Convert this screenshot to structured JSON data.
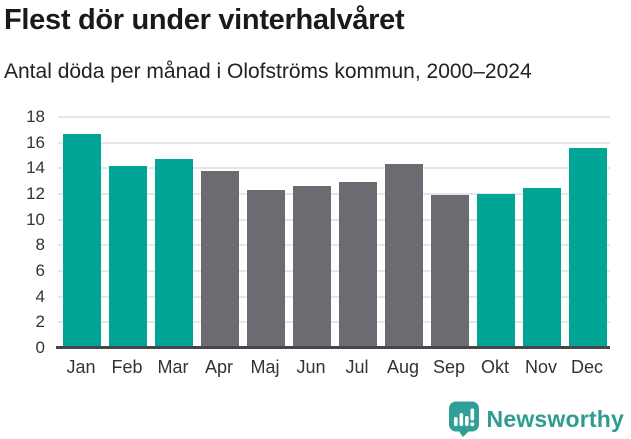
{
  "header": {
    "title": "Flest dör under vinterhalvåret",
    "subtitle": "Antal döda per månad i Olofströms kommun, 2000–2024"
  },
  "chart_data": {
    "type": "bar",
    "title": "Flest dör under vinterhalvåret",
    "subtitle": "Antal döda per månad i Olofströms kommun, 2000–2024",
    "categories": [
      "Jan",
      "Feb",
      "Mar",
      "Apr",
      "Maj",
      "Jun",
      "Jul",
      "Aug",
      "Sep",
      "Okt",
      "Nov",
      "Dec"
    ],
    "values": [
      16.7,
      14.2,
      14.7,
      13.8,
      12.3,
      12.6,
      12.9,
      14.3,
      11.9,
      12.0,
      12.5,
      15.6
    ],
    "bar_colors": [
      "#00a596",
      "#00a596",
      "#00a596",
      "#6c6b71",
      "#6c6b71",
      "#6c6b71",
      "#6c6b71",
      "#6c6b71",
      "#6c6b71",
      "#00a596",
      "#00a596",
      "#00a596"
    ],
    "highlight_color": "#00a596",
    "base_color": "#6c6b71",
    "xlabel": "",
    "ylabel": "",
    "ylim": [
      0,
      18
    ],
    "yticks": [
      0,
      2,
      4,
      6,
      8,
      10,
      12,
      14,
      16,
      18
    ],
    "grid": true,
    "legend": false
  },
  "footer": {
    "brand": "Newsworthy",
    "brand_color": "#2f9c94",
    "logo_icon": "bar-chart-speech-bubble"
  }
}
